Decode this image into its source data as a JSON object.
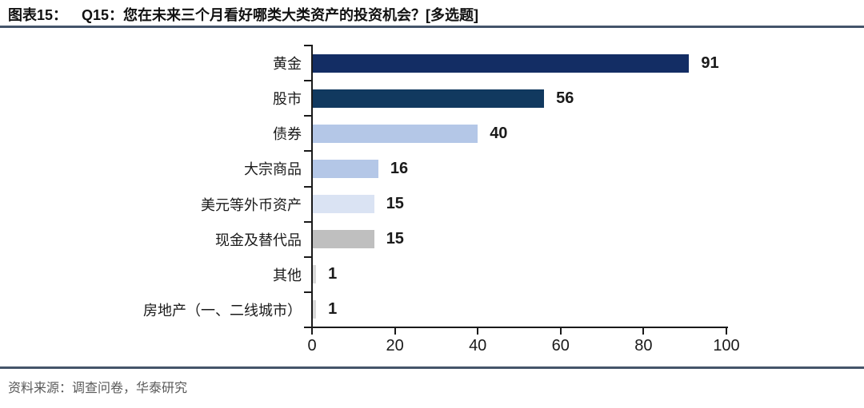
{
  "header": {
    "figure_label": "图表15：",
    "title": "Q15：您在未来三个月看好哪类大类资产的投资机会？[多选题]"
  },
  "footer": {
    "source": "资料来源：调查问卷，华泰研究"
  },
  "colors": {
    "rule": "#44546A",
    "axis": "#1a1a1a",
    "value_label": "#1a1a1a",
    "source_text": "#595959"
  },
  "chart_data": {
    "type": "bar",
    "orientation": "horizontal",
    "title": "Q15：您在未来三个月看好哪类大类资产的投资机会？[多选题]",
    "categories": [
      "黄金",
      "股市",
      "债券",
      "大宗商品",
      "美元等外币资产",
      "现金及替代品",
      "其他",
      "房地产（一、二线城市）"
    ],
    "values": [
      91,
      56,
      40,
      16,
      15,
      15,
      1,
      1
    ],
    "bar_colors": [
      "#132d64",
      "#11395f",
      "#b4c7e7",
      "#b4c7e7",
      "#dae3f3",
      "#bfbfbf",
      "#d9d9d9",
      "#d9d9d9"
    ],
    "xlim": [
      0,
      100
    ],
    "x_ticks": [
      0,
      20,
      40,
      60,
      80,
      100
    ],
    "grid": false,
    "value_labels_shown": true,
    "legend": null
  }
}
